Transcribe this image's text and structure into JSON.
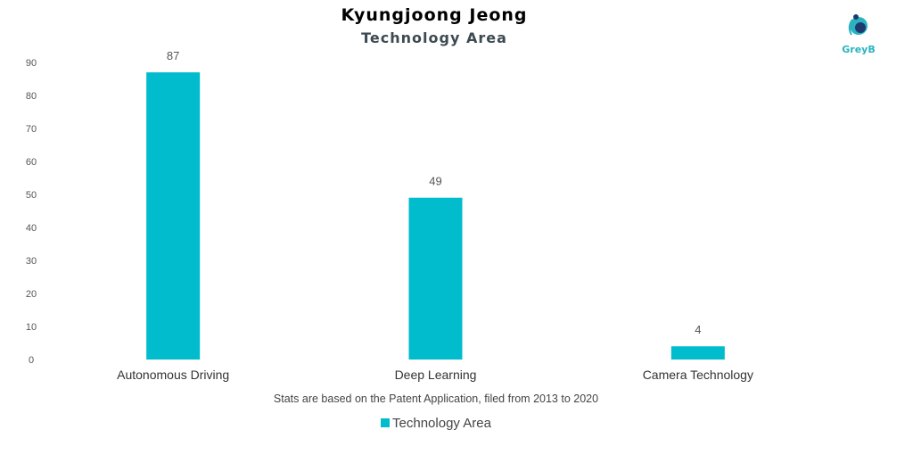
{
  "colors": {
    "bar": "#00bccd",
    "title": "#000000",
    "subtitle": "#3d4a52",
    "logo": "#2bb3c0",
    "logo_dark": "#1e3a6e"
  },
  "logo": {
    "text": "GreyB",
    "icon": "greyb-logo-icon"
  },
  "footnote": "Stats are based on the Patent Application, filed from 2013 to 2020",
  "chart_data": {
    "type": "bar",
    "title": "Kyungjoong Jeong",
    "subtitle": "Technology Area",
    "xlabel": "",
    "ylabel": "",
    "categories": [
      "Autonomous Driving",
      "Deep Learning",
      "Camera Technology"
    ],
    "series": [
      {
        "name": "Technology Area",
        "values": [
          87,
          49,
          4
        ]
      }
    ],
    "ylim": [
      0,
      90
    ],
    "yticks": [
      0,
      10,
      20,
      30,
      40,
      50,
      60,
      70,
      80,
      90
    ],
    "data_labels": true,
    "grid": false,
    "legend_position": "bottom"
  }
}
